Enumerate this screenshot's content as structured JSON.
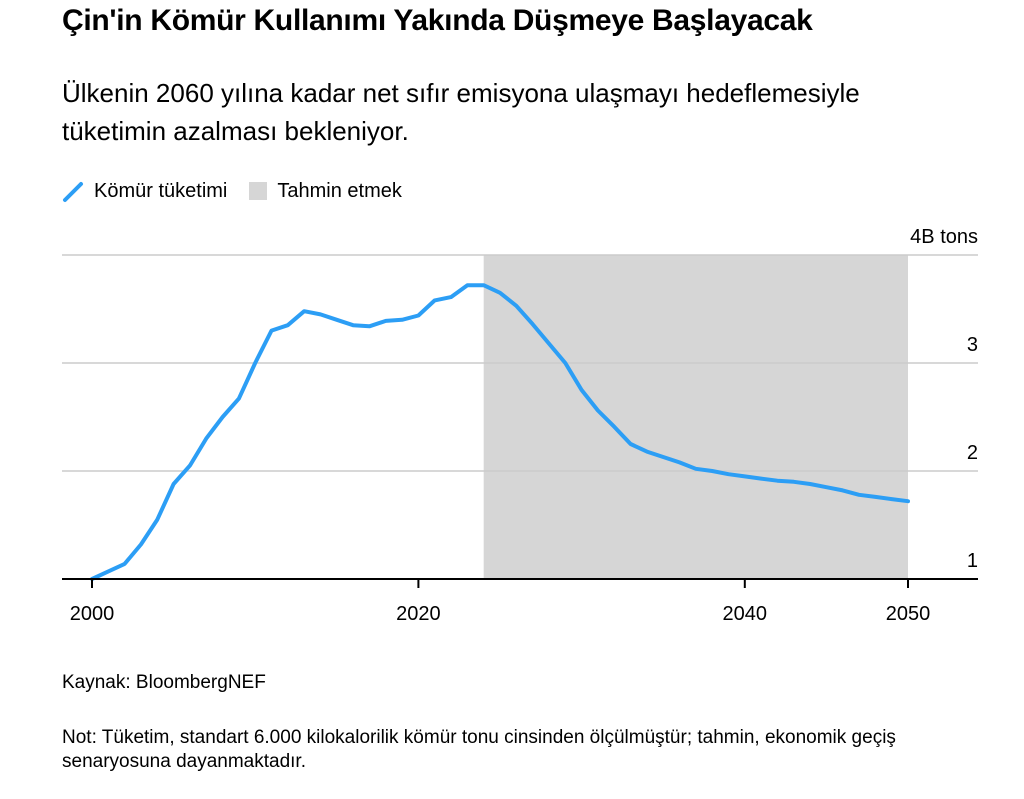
{
  "header": {
    "title": "Çin'in Kömür Kullanımı Yakında Düşmeye Başlayacak",
    "subtitle": "Ülkenin 2060 yılına kadar net sıfır emisyona ulaşmayı hedeflemesiyle tüketimin azalması bekleniyor."
  },
  "legend": {
    "line_label": "Kömür tüketimi",
    "forecast_label": "Tahmin etmek"
  },
  "colors": {
    "line": "#2c9ef5",
    "forecast": "#d6d6d6",
    "grid": "#cccccc",
    "axis": "#000000"
  },
  "chart_data": {
    "type": "line",
    "x": [
      2000,
      2001,
      2002,
      2003,
      2004,
      2005,
      2006,
      2007,
      2008,
      2009,
      2010,
      2011,
      2012,
      2013,
      2014,
      2015,
      2016,
      2017,
      2018,
      2019,
      2020,
      2021,
      2022,
      2023,
      2024,
      2025,
      2026,
      2027,
      2028,
      2029,
      2030,
      2031,
      2032,
      2033,
      2034,
      2035,
      2036,
      2037,
      2038,
      2039,
      2040,
      2041,
      2042,
      2043,
      2044,
      2045,
      2046,
      2047,
      2048,
      2049,
      2050
    ],
    "series": [
      {
        "name": "Kömür tüketimi",
        "values": [
          1.0,
          1.07,
          1.14,
          1.32,
          1.55,
          1.88,
          2.05,
          2.3,
          2.5,
          2.67,
          3.0,
          3.3,
          3.35,
          3.48,
          3.45,
          3.4,
          3.35,
          3.34,
          3.39,
          3.4,
          3.44,
          3.58,
          3.61,
          3.72,
          3.72,
          3.65,
          3.53,
          3.36,
          3.18,
          3.0,
          2.75,
          2.56,
          2.41,
          2.25,
          2.18,
          2.13,
          2.08,
          2.02,
          2.0,
          1.97,
          1.95,
          1.93,
          1.91,
          1.9,
          1.88,
          1.85,
          1.82,
          1.78,
          1.76,
          1.74,
          1.72
        ]
      }
    ],
    "forecast_start": 2024,
    "forecast_end": 2050,
    "xlim": [
      1998,
      2052
    ],
    "ylim": [
      1,
      4
    ],
    "x_ticks": [
      2000,
      2020,
      2040,
      2050
    ],
    "y_ticks": [
      {
        "value": 4,
        "label": "4B tons"
      },
      {
        "value": 3,
        "label": "3"
      },
      {
        "value": 2,
        "label": "2"
      },
      {
        "value": 1,
        "label": "1"
      }
    ],
    "grid": true
  },
  "footer": {
    "source": "Kaynak: BloombergNEF",
    "note": "Not: Tüketim, standart 6.000 kilokalorilik kömür tonu cinsinden ölçülmüştür; tahmin, ekonomik geçiş senaryosuna dayanmaktadır."
  }
}
